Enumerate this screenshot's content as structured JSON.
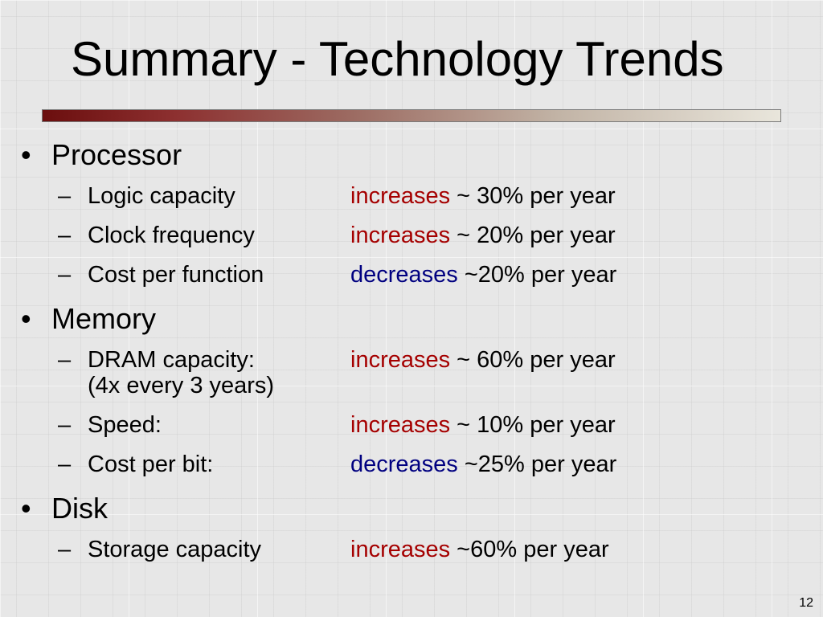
{
  "slide": {
    "title": "Summary - Technology Trends",
    "page_number": "12",
    "sections": [
      {
        "heading": "Processor",
        "items": [
          {
            "label": "Logic capacity",
            "verb": "increases",
            "rate": " ~ 30% per year"
          },
          {
            "label": "Clock frequency",
            "verb": "increases",
            "rate": " ~ 20% per year"
          },
          {
            "label": "Cost per function",
            "verb": "decreases",
            "rate": " ~20% per year"
          }
        ]
      },
      {
        "heading": "Memory",
        "items": [
          {
            "label": "DRAM capacity:",
            "sub": "(4x every 3 years)",
            "verb": "increases",
            "rate": " ~ 60% per year"
          },
          {
            "label": "Speed:",
            "verb": "increases",
            "rate": " ~ 10% per year"
          },
          {
            "label": "Cost  per bit:",
            "verb": "decreases",
            "rate": " ~25% per year"
          }
        ]
      },
      {
        "heading": "Disk",
        "items": [
          {
            "label": "Storage capacity",
            "verb": "increases",
            "rate": " ~60% per year"
          }
        ]
      }
    ]
  },
  "colors": {
    "increase": "#a50000",
    "decrease": "#000080"
  }
}
